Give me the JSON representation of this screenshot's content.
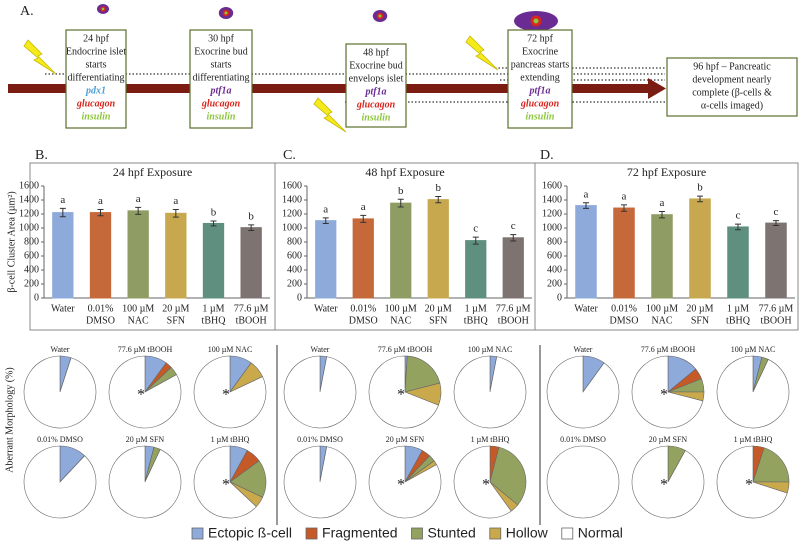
{
  "figure_label": "A.",
  "timeline": {
    "stages": [
      {
        "lines": [
          "24 hpf",
          "Endocrine islet",
          "starts",
          "differentiating"
        ],
        "genes": [
          {
            "name": "pdx1",
            "color": "#4f9fd6"
          },
          {
            "name": "glucagon",
            "color": "#d7261e"
          },
          {
            "name": "insulin",
            "color": "#8dc63f"
          }
        ]
      },
      {
        "lines": [
          "30 hpf",
          "Exocrine bud",
          "starts",
          "differentiating"
        ],
        "genes": [
          {
            "name": "ptf1a",
            "color": "#6a2b93"
          },
          {
            "name": "glucagon",
            "color": "#d7261e"
          },
          {
            "name": "insulin",
            "color": "#8dc63f"
          }
        ]
      },
      {
        "lines": [
          "48 hpf",
          "Exocrine bud",
          "envelops islet"
        ],
        "genes": [
          {
            "name": "ptf1a",
            "color": "#6a2b93"
          },
          {
            "name": "glucagon",
            "color": "#d7261e"
          },
          {
            "name": "insulin",
            "color": "#8dc63f"
          }
        ]
      },
      {
        "lines": [
          "72 hpf",
          "Exocrine",
          "pancreas starts",
          "extending"
        ],
        "genes": [
          {
            "name": "ptf1a",
            "color": "#6a2b93"
          },
          {
            "name": "glucagon",
            "color": "#d7261e"
          },
          {
            "name": "insulin",
            "color": "#8dc63f"
          }
        ]
      }
    ],
    "final": {
      "lines": [
        "96 hpf – Pancreatic",
        "development nearly",
        "complete (β-cells &",
        "α-cells imaged)"
      ]
    }
  },
  "chart_data": [
    {
      "type": "bar",
      "panel": "B.",
      "title": "24 hpf Exposure",
      "y_label": "β-cell Cluster Area (µm²)",
      "categories": [
        [
          "Water"
        ],
        [
          "0.01%",
          "DMSO"
        ],
        [
          "100 µM",
          "NAC"
        ],
        [
          "20 µM",
          "SFN"
        ],
        [
          "1 µM",
          "tBHQ"
        ],
        [
          "77.6 µM",
          "tBOOH"
        ]
      ],
      "values": [
        1220,
        1220,
        1245,
        1210,
        1065,
        1005
      ],
      "errors": [
        60,
        45,
        50,
        55,
        35,
        40
      ],
      "annotations": [
        "a",
        "a",
        "a",
        "a",
        "b",
        "b"
      ],
      "colors": [
        "#8eaadb",
        "#c5683a",
        "#8f9c64",
        "#c7a84e",
        "#5f8f7f",
        "#7d7371"
      ],
      "ylim": [
        0,
        1600
      ],
      "yticks": [
        0,
        200,
        400,
        600,
        800,
        1000,
        1200,
        1400,
        1600
      ]
    },
    {
      "type": "bar",
      "panel": "C.",
      "title": "48 hpf Exposure",
      "categories": [
        [
          "Water"
        ],
        [
          "0.01%",
          "DMSO"
        ],
        [
          "100 µM",
          "NAC"
        ],
        [
          "20 µM",
          "SFN"
        ],
        [
          "1 µM",
          "tBHQ"
        ],
        [
          "77.6 µM",
          "tBOOH"
        ]
      ],
      "values": [
        1105,
        1130,
        1355,
        1405,
        820,
        860
      ],
      "errors": [
        40,
        50,
        55,
        45,
        50,
        45
      ],
      "annotations": [
        "a",
        "a",
        "b",
        "b",
        "c",
        "c"
      ],
      "colors": [
        "#8eaadb",
        "#c5683a",
        "#8f9c64",
        "#c7a84e",
        "#5f8f7f",
        "#7d7371"
      ],
      "ylim": [
        0,
        1600
      ],
      "yticks": [
        0,
        200,
        400,
        600,
        800,
        1000,
        1200,
        1400,
        1600
      ]
    },
    {
      "type": "bar",
      "panel": "D.",
      "title": "72 hpf Exposure",
      "categories": [
        [
          "Water"
        ],
        [
          "0.01%",
          "DMSO"
        ],
        [
          "100 µM",
          "NAC"
        ],
        [
          "20 µM",
          "SFN"
        ],
        [
          "1 µM",
          "tBHQ"
        ],
        [
          "77.6 µM",
          "tBOOH"
        ]
      ],
      "values": [
        1320,
        1285,
        1190,
        1415,
        1015,
        1070
      ],
      "errors": [
        40,
        45,
        45,
        40,
        40,
        35
      ],
      "annotations": [
        "a",
        "a",
        "a",
        "b",
        "c",
        "c"
      ],
      "colors": [
        "#8eaadb",
        "#c5683a",
        "#8f9c64",
        "#c7a84e",
        "#5f8f7f",
        "#7d7371"
      ],
      "ylim": [
        0,
        1600
      ],
      "yticks": [
        0,
        200,
        400,
        600,
        800,
        1000,
        1200,
        1400,
        1600
      ]
    }
  ],
  "pie_charts": {
    "type": "pie",
    "y_label": "Aberrant Morphology (%)",
    "categories": [
      "Ectopic ß-cell",
      "Fragmented",
      "Stunted",
      "Hollow",
      "Normal"
    ],
    "colors": [
      "#8eaadb",
      "#c55a28",
      "#93a35f",
      "#c9a94b",
      "#ffffff"
    ],
    "panels": [
      [
        {
          "title": "Water",
          "values": [
            5,
            0,
            0,
            0,
            95
          ]
        },
        {
          "title": "77.6 µM tBOOH",
          "values": [
            10,
            3,
            4,
            0,
            83
          ],
          "annotation": "*"
        },
        {
          "title": "100 µM NAC",
          "values": [
            10,
            0,
            0,
            8,
            82
          ],
          "annotation": "*"
        },
        {
          "title": "0.01% DMSO",
          "values": [
            12,
            0,
            0,
            0,
            88
          ]
        },
        {
          "title": "20 µM SFN",
          "values": [
            4,
            0,
            3,
            0,
            93
          ]
        },
        {
          "title": "1 µM tBHQ",
          "values": [
            8,
            7,
            17,
            5,
            63
          ],
          "annotation": "*"
        }
      ],
      [
        {
          "title": "Water",
          "values": [
            3,
            0,
            0,
            0,
            97
          ]
        },
        {
          "title": "77.6 µM tBOOH",
          "values": [
            1,
            0,
            20,
            10,
            69
          ],
          "annotation": "*"
        },
        {
          "title": "100 µM NAC",
          "values": [
            3,
            0,
            0,
            0,
            97
          ]
        },
        {
          "title": "0.01% DMSO",
          "values": [
            3,
            0,
            0,
            0,
            97
          ]
        },
        {
          "title": "20 µM SFN",
          "values": [
            8,
            4,
            3,
            2,
            83
          ],
          "annotation": "*"
        },
        {
          "title": "1 µM tBHQ",
          "values": [
            0,
            4,
            32,
            4,
            60
          ],
          "annotation": "*"
        }
      ],
      [
        {
          "title": "Water",
          "values": [
            10,
            0,
            0,
            0,
            90
          ]
        },
        {
          "title": "77.6 µM tBOOH",
          "values": [
            14,
            5,
            6,
            4,
            71
          ],
          "annotation": "*"
        },
        {
          "title": "100 µM NAC",
          "values": [
            4,
            0,
            3,
            0,
            93
          ]
        },
        {
          "title": "0.01% DMSO",
          "values": [
            0,
            0,
            0,
            0,
            100
          ]
        },
        {
          "title": "20 µM SFN",
          "values": [
            0,
            0,
            8,
            0,
            92
          ],
          "annotation": "*"
        },
        {
          "title": "1 µM tBHQ",
          "values": [
            0,
            5,
            20,
            5,
            70
          ],
          "annotation": "*"
        }
      ]
    ]
  }
}
